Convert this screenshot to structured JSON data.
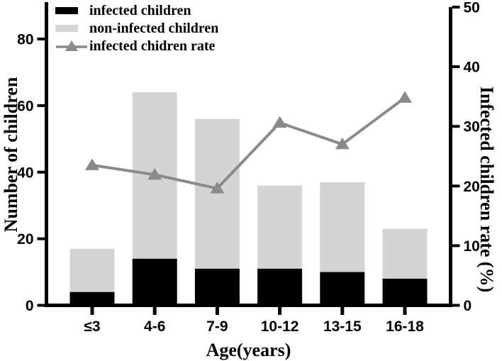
{
  "chart_data": {
    "type": "bar",
    "subtype": "stacked-bars-with-line-overlay",
    "title": "",
    "categories": [
      "≤3",
      "4-6",
      "7-9",
      "10-12",
      "13-15",
      "16-18"
    ],
    "series": [
      {
        "name": "infected children",
        "type": "bar",
        "stack": "children",
        "axis": "left",
        "color": "#000000",
        "values": [
          4,
          14,
          11,
          11,
          10,
          8
        ]
      },
      {
        "name": "non-infected children",
        "type": "bar",
        "stack": "children",
        "axis": "left",
        "color": "#d4d4d4",
        "values": [
          13,
          50,
          45,
          25,
          27,
          15
        ]
      },
      {
        "name": "infected chidren rate",
        "type": "line",
        "marker": "triangle",
        "axis": "right",
        "color": "#8a8a8a",
        "values": [
          23.5,
          21.9,
          19.6,
          30.6,
          27.0,
          34.8
        ]
      }
    ],
    "stacked_totals": [
      17,
      64,
      56,
      36,
      37,
      23
    ],
    "x_axis": {
      "label": "Age(years)"
    },
    "left_axis": {
      "label": "Number of children",
      "ticks": [
        "0",
        "20",
        "40",
        "60",
        "80"
      ],
      "range": [
        0,
        91
      ]
    },
    "right_axis": {
      "label": "Infected children rate (%)",
      "ticks": [
        "0",
        "10",
        "20",
        "30",
        "40",
        "50"
      ],
      "range": [
        0,
        50
      ]
    },
    "legend_position": "top-left",
    "grid": false,
    "axis_color": "#000000",
    "background_color": "#ffffff"
  }
}
